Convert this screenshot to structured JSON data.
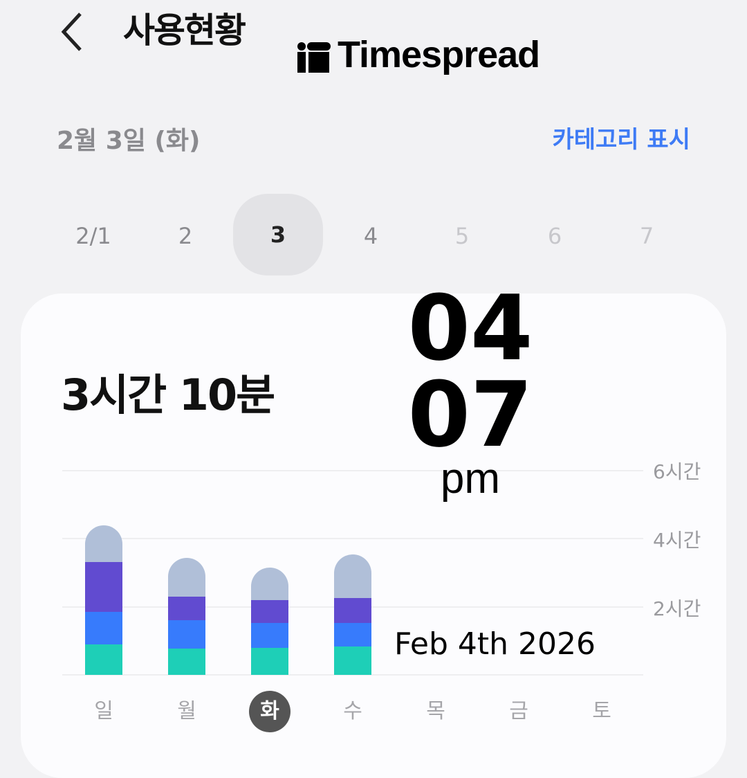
{
  "header": {
    "title": "사용현황",
    "back_icon": "chevron-left-icon"
  },
  "overlay": {
    "brand": "Timespread",
    "hour": "04",
    "minute": "07",
    "ampm": "pm",
    "date": "Feb 4th 2026"
  },
  "date_label": "2월 3일 (화)",
  "category_toggle": "카테고리 표시",
  "day_selector": {
    "days": [
      "2/1",
      "2",
      "3",
      "4",
      "5",
      "6",
      "7"
    ],
    "selected_index": 2
  },
  "total_usage": "3시간 10분",
  "chart_data": {
    "type": "bar",
    "stacked": true,
    "categories": [
      "일",
      "월",
      "화",
      "수",
      "목",
      "금",
      "토"
    ],
    "selected_category": "화",
    "y_ticks": [
      "6시간",
      "4시간",
      "2시간"
    ],
    "ylim": [
      0,
      6
    ],
    "grid": true,
    "series": [
      {
        "color": "#1ecfb7",
        "values": [
          0.9,
          0.78,
          0.8,
          0.84,
          0,
          0,
          0
        ]
      },
      {
        "color": "#377bfc",
        "values": [
          0.96,
          0.84,
          0.73,
          0.69,
          0,
          0,
          0
        ]
      },
      {
        "color": "#614bd0",
        "values": [
          1.47,
          0.69,
          0.67,
          0.73,
          0,
          0,
          0
        ]
      },
      {
        "color": "#b0bfd8",
        "values": [
          1.06,
          1.12,
          0.96,
          1.27,
          0,
          0,
          0
        ]
      }
    ]
  }
}
